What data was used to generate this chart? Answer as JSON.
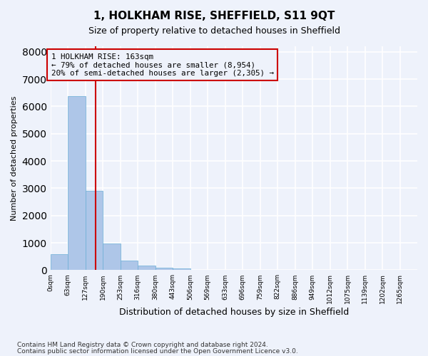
{
  "title": "1, HOLKHAM RISE, SHEFFIELD, S11 9QT",
  "subtitle": "Size of property relative to detached houses in Sheffield",
  "xlabel": "Distribution of detached houses by size in Sheffield",
  "ylabel": "Number of detached properties",
  "bin_labels": [
    "0sqm",
    "63sqm",
    "127sqm",
    "190sqm",
    "253sqm",
    "316sqm",
    "380sqm",
    "443sqm",
    "506sqm",
    "569sqm",
    "633sqm",
    "696sqm",
    "759sqm",
    "822sqm",
    "886sqm",
    "949sqm",
    "1012sqm",
    "1075sqm",
    "1139sqm",
    "1202sqm",
    "1265sqm"
  ],
  "bar_values": [
    580,
    6380,
    2900,
    970,
    360,
    170,
    90,
    60,
    20,
    8,
    4,
    2,
    1,
    1,
    0,
    0,
    0,
    0,
    0,
    0,
    0
  ],
  "bar_color": "#aec6e8",
  "bar_edge_color": "#6baed6",
  "vline_color": "#cc0000",
  "annotation_text": "1 HOLKHAM RISE: 163sqm\n← 79% of detached houses are smaller (8,954)\n20% of semi-detached houses are larger (2,305) →",
  "annotation_box_color": "#cc0000",
  "ylim": [
    0,
    8200
  ],
  "yticks": [
    0,
    1000,
    2000,
    3000,
    4000,
    5000,
    6000,
    7000,
    8000
  ],
  "footer_line1": "Contains HM Land Registry data © Crown copyright and database right 2024.",
  "footer_line2": "Contains public sector information licensed under the Open Government Licence v3.0.",
  "bg_color": "#eef2fb",
  "grid_color": "#ffffff"
}
